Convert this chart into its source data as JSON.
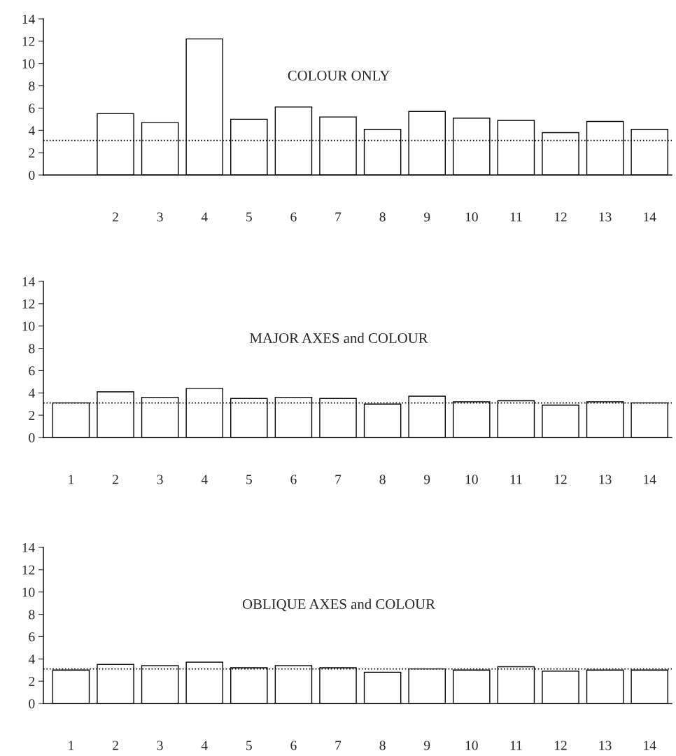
{
  "chart_data": [
    {
      "type": "bar",
      "title": "COLOUR ONLY",
      "categories": [
        null,
        "2",
        "3",
        "4",
        "5",
        "6",
        "7",
        "8",
        "9",
        "10",
        "11",
        "12",
        "13",
        "14"
      ],
      "series": [
        {
          "color": "#ffffff",
          "values": [
            null,
            5.5,
            4.7,
            12.2,
            5.0,
            6.1,
            5.2,
            4.1,
            5.7,
            5.1,
            4.9,
            3.8,
            4.8,
            4.1
          ]
        }
      ],
      "ylim": [
        0,
        14
      ],
      "yticks": [
        0,
        2,
        4,
        6,
        8,
        10,
        12,
        14
      ],
      "grid": false,
      "ref_lines": [
        {
          "axis": "y",
          "value": 3.1,
          "color": "#000000",
          "line_style": "dotted"
        }
      ]
    },
    {
      "type": "bar",
      "title": "MAJOR AXES and COLOUR",
      "categories": [
        "1",
        "2",
        "3",
        "4",
        "5",
        "6",
        "7",
        "8",
        "9",
        "10",
        "11",
        "12",
        "13",
        "14"
      ],
      "series": [
        {
          "color": "#ffffff",
          "values": [
            3.1,
            4.1,
            3.6,
            4.4,
            3.5,
            3.6,
            3.5,
            3.0,
            3.7,
            3.2,
            3.3,
            2.9,
            3.2,
            3.1
          ]
        }
      ],
      "ylim": [
        0,
        14
      ],
      "yticks": [
        0,
        2,
        4,
        6,
        8,
        10,
        12,
        14
      ],
      "grid": false,
      "ref_lines": [
        {
          "axis": "y",
          "value": 3.1,
          "color": "#000000",
          "line_style": "dotted"
        }
      ]
    },
    {
      "type": "bar",
      "title": "OBLIQUE AXES and COLOUR",
      "categories": [
        "1",
        "2",
        "3",
        "4",
        "5",
        "6",
        "7",
        "8",
        "9",
        "10",
        "11",
        "12",
        "13",
        "14"
      ],
      "series": [
        {
          "color": "#ffffff",
          "values": [
            3.0,
            3.5,
            3.4,
            3.7,
            3.2,
            3.4,
            3.2,
            2.8,
            3.1,
            3.0,
            3.3,
            2.9,
            3.0,
            3.0
          ]
        }
      ],
      "ylim": [
        0,
        14
      ],
      "yticks": [
        0,
        2,
        4,
        6,
        8,
        10,
        12,
        14
      ],
      "grid": false,
      "ref_lines": [
        {
          "axis": "y",
          "value": 3.1,
          "color": "#000000",
          "line_style": "dotted"
        }
      ]
    }
  ]
}
